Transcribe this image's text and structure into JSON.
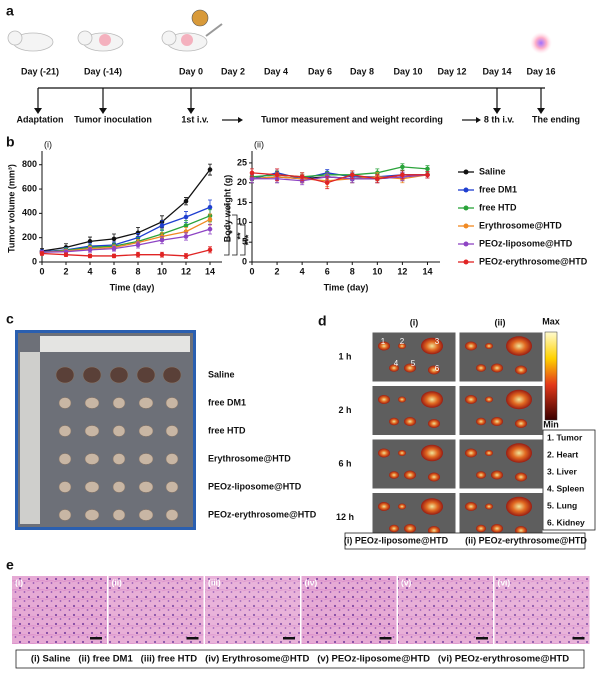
{
  "panel_labels": [
    "a",
    "b",
    "c",
    "d",
    "e"
  ],
  "timeline": {
    "days": [
      "Day (-21)",
      "Day (-14)",
      "Day 0",
      "Day 2",
      "Day 4",
      "Day 6",
      "Day 8",
      "Day 10",
      "Day 12",
      "Day 14",
      "Day 16"
    ],
    "events": [
      "Adaptation",
      "Tumor inoculation",
      "1st i.v.",
      "Tumor measurement and weight recording",
      "8 th i.v.",
      "The ending"
    ]
  },
  "chart_data": [
    {
      "type": "line",
      "panel": "(i)",
      "xlabel": "Time (day)",
      "ylabel": "Tumor volume (mm³)",
      "x": [
        0,
        2,
        4,
        6,
        8,
        10,
        12,
        14
      ],
      "xlim": [
        0,
        15
      ],
      "xticks": [
        0,
        2,
        4,
        6,
        8,
        10,
        12,
        14
      ],
      "ylim": [
        0,
        880
      ],
      "yticks": [
        0,
        200,
        400,
        600,
        800
      ],
      "annotations": [
        "*",
        "**",
        "***"
      ],
      "series": [
        {
          "name": "Saline",
          "color": "#111111",
          "values": [
            90,
            120,
            170,
            190,
            240,
            330,
            500,
            760
          ],
          "errors": [
            20,
            30,
            35,
            40,
            45,
            50,
            30,
            45
          ]
        },
        {
          "name": "free DM1",
          "color": "#1f3fd0",
          "values": [
            85,
            100,
            130,
            140,
            200,
            300,
            370,
            450
          ],
          "errors": [
            15,
            20,
            25,
            25,
            35,
            40,
            45,
            60
          ]
        },
        {
          "name": "free HTD",
          "color": "#2aa33a",
          "values": [
            80,
            95,
            120,
            130,
            170,
            230,
            300,
            380
          ],
          "errors": [
            15,
            20,
            20,
            25,
            30,
            35,
            40,
            50
          ]
        },
        {
          "name": "Erythrosome@HTD",
          "color": "#f08a24",
          "values": [
            80,
            90,
            110,
            120,
            160,
            210,
            250,
            350
          ],
          "errors": [
            15,
            15,
            20,
            20,
            25,
            30,
            35,
            45
          ]
        },
        {
          "name": "PEOz-liposome@HTD",
          "color": "#8e44c4",
          "values": [
            80,
            85,
            100,
            110,
            140,
            180,
            210,
            270
          ],
          "errors": [
            15,
            15,
            20,
            20,
            25,
            30,
            30,
            40
          ]
        },
        {
          "name": "PEOz-erythrosome@HTD",
          "color": "#e02424",
          "values": [
            70,
            60,
            50,
            50,
            60,
            60,
            50,
            100
          ],
          "errors": [
            15,
            15,
            15,
            15,
            20,
            20,
            20,
            25
          ]
        }
      ]
    },
    {
      "type": "line",
      "panel": "(ii)",
      "xlabel": "Time (day)",
      "ylabel": "Body weight (g)",
      "x": [
        0,
        2,
        4,
        6,
        8,
        10,
        12,
        14
      ],
      "xlim": [
        0,
        15
      ],
      "xticks": [
        0,
        2,
        4,
        6,
        8,
        10,
        12,
        14
      ],
      "ylim": [
        0,
        27
      ],
      "yticks": [
        0,
        5,
        10,
        15,
        20,
        25
      ],
      "series": [
        {
          "color": "#111111",
          "values": [
            21,
            21.5,
            21,
            21.5,
            21,
            21,
            21.5,
            22
          ],
          "errors": [
            1,
            1.5,
            1,
            1,
            1,
            1,
            1,
            0.8
          ]
        },
        {
          "color": "#1f3fd0",
          "values": [
            21,
            22.5,
            21,
            22.5,
            21.5,
            21.5,
            22,
            22
          ],
          "errors": [
            1,
            1,
            1,
            0.8,
            1,
            1,
            1,
            0.8
          ]
        },
        {
          "color": "#2aa33a",
          "values": [
            21.5,
            22,
            21.5,
            22,
            22,
            22.5,
            24,
            23.5
          ],
          "errors": [
            1,
            1,
            1,
            0.8,
            1,
            1,
            0.8,
            0.8
          ]
        },
        {
          "color": "#f08a24",
          "values": [
            21,
            21.5,
            21,
            20.5,
            21,
            21.5,
            21,
            22
          ],
          "errors": [
            1,
            1,
            1,
            1.5,
            1,
            1,
            1,
            0.8
          ]
        },
        {
          "color": "#8e44c4",
          "values": [
            21,
            21,
            20.5,
            21.5,
            21,
            21,
            21.5,
            22
          ],
          "errors": [
            1,
            1,
            1,
            1,
            1,
            1,
            1,
            0.8
          ]
        },
        {
          "color": "#e02424",
          "values": [
            22.5,
            22,
            21.5,
            20,
            22,
            21,
            22,
            22
          ],
          "errors": [
            1,
            1.5,
            1,
            1.5,
            1,
            1,
            1,
            0.8
          ]
        }
      ]
    }
  ],
  "panel_c": {
    "groups": [
      "Saline",
      "free DM1",
      "free HTD",
      "Erythrosome@HTD",
      "PEOz-liposome@HTD",
      "PEOz-erythrosome@HTD"
    ]
  },
  "panel_d": {
    "columns": [
      "(i)",
      "(ii)"
    ],
    "rows": [
      "1 h",
      "2 h",
      "6 h",
      "12 h"
    ],
    "scale": [
      "Max",
      "Min"
    ],
    "organ_numbers": [
      "1",
      "2",
      "3",
      "4",
      "5",
      "6"
    ],
    "organs": [
      "1. Tumor",
      "2. Heart",
      "3. Liver",
      "4. Spleen",
      "5. Lung",
      "6. Kidney"
    ],
    "caption": [
      "(i) PEOz-liposome@HTD",
      "(ii) PEOz-erythrosome@HTD"
    ]
  },
  "panel_e": {
    "images": [
      "(i)",
      "(ii)",
      "(iii)",
      "(iv)",
      "(v)",
      "(vi)"
    ],
    "caption": "(i) Saline   (ii) free DM1   (iii) free HTD   (iv) Erythrosome@HTD   (v) PEOz-liposome@HTD   (vi) PEOz-erythrosome@HTD"
  }
}
